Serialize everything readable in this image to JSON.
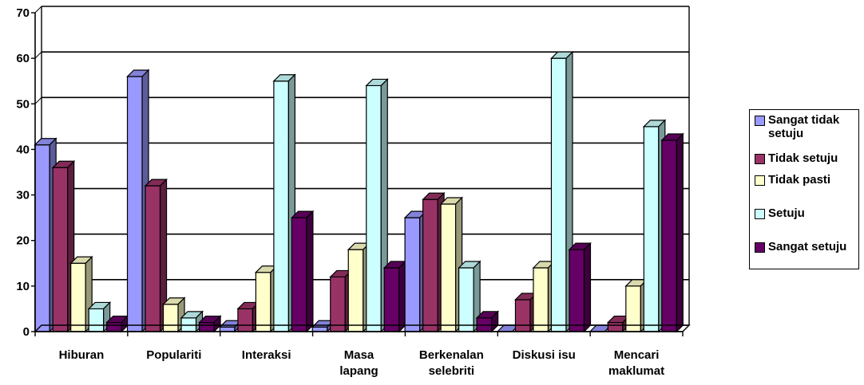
{
  "chart_data": {
    "type": "bar",
    "title": "",
    "xlabel": "",
    "ylabel": "",
    "ylim": [
      0,
      70
    ],
    "yticks": [
      0,
      10,
      20,
      30,
      40,
      50,
      60,
      70
    ],
    "grid": true,
    "legend_position": "right",
    "categories": [
      "Hiburan",
      "Populariti",
      "Interaksi",
      "Masa lapang",
      "Berkenalan selebriti",
      "Diskusi isu",
      "Mencari maklumat"
    ],
    "category_lines": [
      [
        "Hiburan"
      ],
      [
        "Populariti"
      ],
      [
        "Interaksi"
      ],
      [
        "Masa",
        "lapang"
      ],
      [
        "Berkenalan",
        "selebriti"
      ],
      [
        "Diskusi isu"
      ],
      [
        "Mencari",
        "maklumat"
      ]
    ],
    "series": [
      {
        "name": "Sangat tidak setuju",
        "legend_lines": [
          "Sangat tidak",
          "setuju"
        ],
        "color": "#9999FF",
        "values": [
          41,
          56,
          1,
          1,
          25,
          0,
          0
        ]
      },
      {
        "name": "Tidak setuju",
        "legend_lines": [
          "Tidak setuju"
        ],
        "color": "#993366",
        "values": [
          36,
          32,
          5,
          12,
          29,
          7,
          2
        ]
      },
      {
        "name": "Tidak pasti",
        "legend_lines": [
          "Tidak pasti"
        ],
        "color": "#FFFFCC",
        "values": [
          15,
          6,
          13,
          18,
          28,
          14,
          10
        ]
      },
      {
        "name": "Setuju",
        "legend_lines": [
          "Setuju"
        ],
        "color": "#CCFFFF",
        "values": [
          5,
          3,
          55,
          54,
          14,
          60,
          45
        ]
      },
      {
        "name": "Sangat setuju",
        "legend_lines": [
          "Sangat setuju"
        ],
        "color": "#660066",
        "values": [
          2,
          2,
          25,
          14,
          3,
          18,
          42
        ]
      }
    ]
  }
}
